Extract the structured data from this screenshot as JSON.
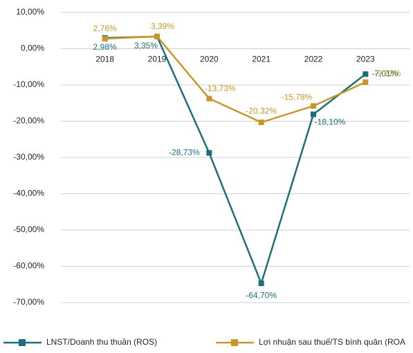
{
  "chart_data": {
    "type": "line",
    "categories": [
      "2018",
      "2019",
      "2020",
      "2021",
      "2022",
      "2023"
    ],
    "series": [
      {
        "name": "LNST/Doanh thu thuần (ROS)",
        "color": "#1d6e7c",
        "values": [
          2.98,
          3.35,
          -28.73,
          -64.7,
          -18.1,
          -7.01
        ],
        "value_labels": [
          "2,98%",
          "3,35%",
          "-28,73%",
          "-64,70%",
          "-18,10%",
          "-7,01%"
        ]
      },
      {
        "name": "Lợi nhuận sau thuế/TS bình quân (ROA",
        "color": "#c9962b",
        "values": [
          2.76,
          3.39,
          -13.73,
          -20.32,
          -15.78,
          -9.22
        ],
        "value_labels": [
          "2,76%",
          "3,39%",
          "-13,73%",
          "-20,32%",
          "-15,78%",
          "-9,22%"
        ]
      }
    ],
    "ylim": [
      -70,
      10
    ],
    "yticks": [
      {
        "value": 10,
        "label": "10,00%"
      },
      {
        "value": 0,
        "label": "0,00%"
      },
      {
        "value": -10,
        "label": "-10,00%"
      },
      {
        "value": -20,
        "label": "-20,00%"
      },
      {
        "value": -30,
        "label": "-30,00%"
      },
      {
        "value": -40,
        "label": "-40,00%"
      },
      {
        "value": -50,
        "label": "-50,00%"
      },
      {
        "value": -60,
        "label": "-60,00%"
      },
      {
        "value": -70,
        "label": "-70,00%"
      }
    ],
    "grid": true,
    "legend": "bottom"
  }
}
